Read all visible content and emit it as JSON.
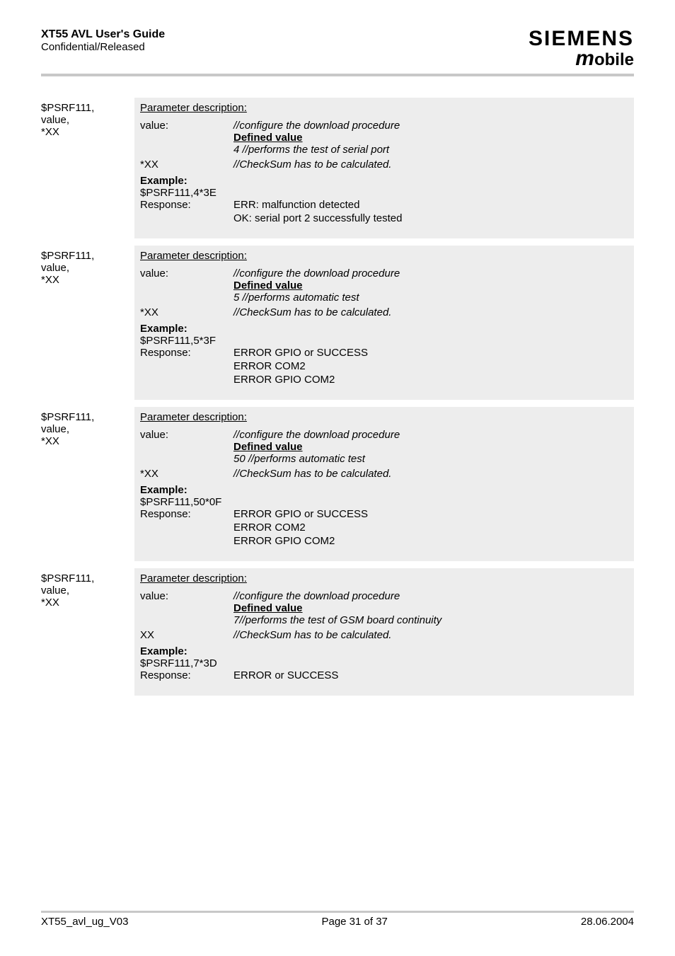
{
  "header": {
    "title": "XT55 AVL User's Guide",
    "subtitle": "Confidential/Released",
    "logo_top": "SIEMENS",
    "logo_bottom_m": "m",
    "logo_bottom_rest": "obile"
  },
  "blocks": [
    {
      "cmd_line1": "$PSRF111,",
      "cmd_line2": "value,",
      "cmd_line3": "*XX",
      "param_title": "Parameter description:",
      "value_key": "value:",
      "value_comment": "//configure the download procedure",
      "defined_label": "Defined value",
      "defined_text": "4   //performs the test of serial port",
      "xx_key": "*XX",
      "xx_comment": "//CheckSum has to be calculated.",
      "example_label": "Example:",
      "example_cmd": "$PSRF111,4*3E",
      "response_key": "Response:",
      "response_lines": [
        "ERR: malfunction detected",
        "OK: serial port 2 successfully tested"
      ]
    },
    {
      "cmd_line1": "$PSRF111,",
      "cmd_line2": "value,",
      "cmd_line3": "*XX",
      "param_title": "Parameter description:",
      "value_key": "value:",
      "value_comment": "//configure the download procedure",
      "defined_label": "Defined value",
      "defined_text": "5   //performs automatic test",
      "xx_key": "*XX",
      "xx_comment": "//CheckSum has to be calculated.",
      "example_label": "Example:",
      "example_cmd": "$PSRF111,5*3F",
      "response_key": "Response:",
      "response_lines": [
        "ERROR GPIO or SUCCESS",
        "ERROR COM2",
        "ERROR GPIO COM2"
      ]
    },
    {
      "cmd_line1": "$PSRF111,",
      "cmd_line2": "value,",
      "cmd_line3": "*XX",
      "param_title": "Parameter description:",
      "value_key": "value:",
      "value_comment": "//configure the download procedure",
      "defined_label": "Defined value",
      "defined_text": "50 //performs automatic test",
      "xx_key": "*XX",
      "xx_comment": "//CheckSum has to be calculated.",
      "example_label": "Example:",
      "example_cmd": "$PSRF111,50*0F",
      "response_key": "Response:",
      "response_lines": [
        "ERROR GPIO or SUCCESS",
        "ERROR COM2",
        "ERROR GPIO COM2"
      ]
    },
    {
      "cmd_line1": "$PSRF111,",
      "cmd_line2": "value,",
      "cmd_line3": "*XX",
      "param_title": "Parameter description:",
      "value_key": "value:",
      "value_comment": "//configure the download procedure",
      "defined_label": "Defined value",
      "defined_text": "7//performs the test of GSM board continuity",
      "xx_key": "XX",
      "xx_comment": "//CheckSum has to be calculated.",
      "example_label": "Example:",
      "example_cmd": "$PSRF111,7*3D",
      "response_key": "Response:",
      "response_lines": [
        "ERROR or SUCCESS"
      ]
    }
  ],
  "footer": {
    "left": "XT55_avl_ug_V03",
    "center": "Page 31 of 37",
    "right": "28.06.2004"
  }
}
